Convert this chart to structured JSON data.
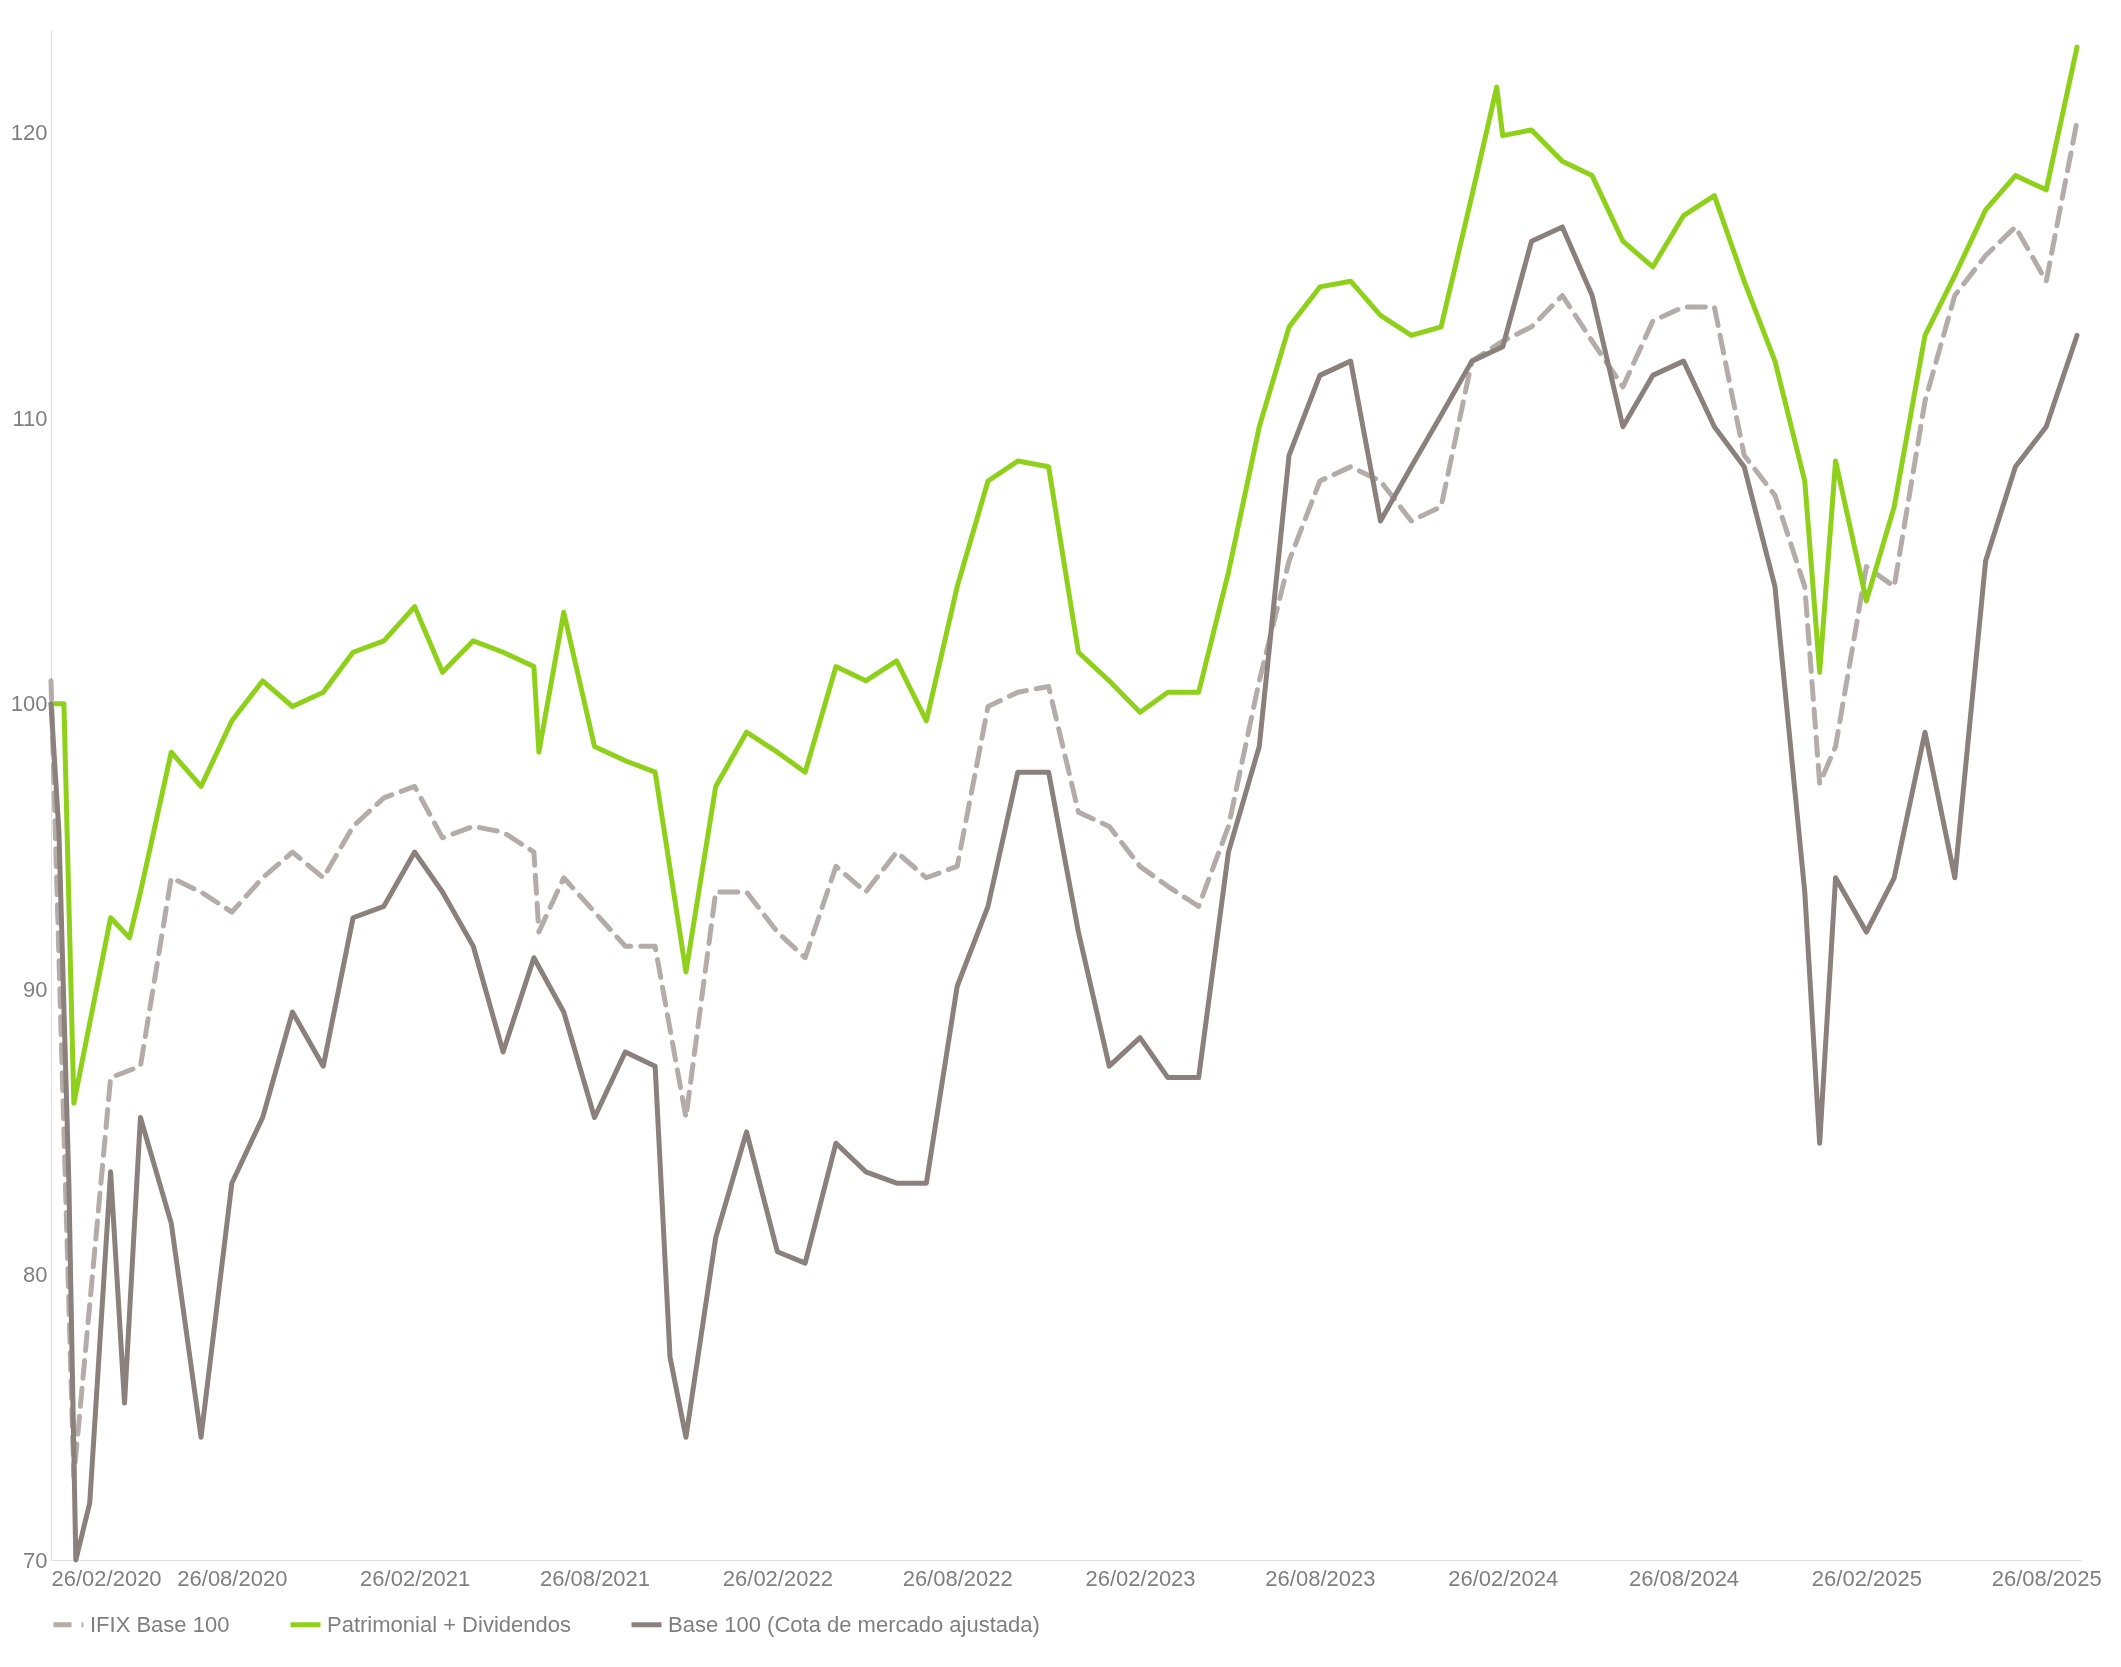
{
  "chart_data": {
    "type": "line",
    "xlim": [
      "2020-02-26",
      "2025-09-30"
    ],
    "ylim": [
      70,
      123.6
    ],
    "yticks": [
      70,
      80,
      90,
      100,
      110,
      120
    ],
    "xticks": [
      {
        "value": "2020-02-26",
        "label": "26/02/2020"
      },
      {
        "value": "2020-08-26",
        "label": "26/08/2020"
      },
      {
        "value": "2021-02-26",
        "label": "26/02/2021"
      },
      {
        "value": "2021-08-26",
        "label": "26/08/2021"
      },
      {
        "value": "2022-02-26",
        "label": "26/02/2022"
      },
      {
        "value": "2022-08-26",
        "label": "26/08/2022"
      },
      {
        "value": "2023-02-26",
        "label": "26/02/2023"
      },
      {
        "value": "2023-08-26",
        "label": "26/08/2023"
      },
      {
        "value": "2024-02-26",
        "label": "26/02/2024"
      },
      {
        "value": "2024-08-26",
        "label": "26/08/2024"
      },
      {
        "value": "2025-02-26",
        "label": "26/02/2025"
      },
      {
        "value": "2025-08-26",
        "label": "26/08/2025"
      }
    ],
    "grid": false,
    "legend": "bottom",
    "marker": "none",
    "series": [
      {
        "name": "IFIX Base 100",
        "color": "#b3aca8",
        "line_style": "dashed",
        "x": [
          "2020-02-26",
          "2020-03-20",
          "2020-04-26",
          "2020-05-26",
          "2020-06-26",
          "2020-07-26",
          "2020-08-26",
          "2020-09-26",
          "2020-10-26",
          "2020-11-26",
          "2020-12-26",
          "2021-01-26",
          "2021-02-26",
          "2021-03-26",
          "2021-04-26",
          "2021-05-26",
          "2021-06-26",
          "2021-07-01",
          "2021-07-26",
          "2021-08-26",
          "2021-09-26",
          "2021-10-26",
          "2021-11-26",
          "2021-12-26",
          "2022-01-26",
          "2022-02-26",
          "2022-03-26",
          "2022-04-26",
          "2022-05-26",
          "2022-06-26",
          "2022-07-26",
          "2022-08-26",
          "2022-09-26",
          "2022-10-26",
          "2022-11-26",
          "2022-12-26",
          "2023-01-26",
          "2023-02-26",
          "2023-03-26",
          "2023-04-26",
          "2023-05-26",
          "2023-06-26",
          "2023-07-26",
          "2023-08-26",
          "2023-09-26",
          "2023-10-26",
          "2023-11-26",
          "2023-12-26",
          "2024-01-26",
          "2024-02-26",
          "2024-03-26",
          "2024-04-26",
          "2024-05-26",
          "2024-06-26",
          "2024-07-26",
          "2024-08-26",
          "2024-09-26",
          "2024-10-26",
          "2024-11-26",
          "2024-12-26",
          "2025-01-10",
          "2025-01-26",
          "2025-02-26",
          "2025-03-26",
          "2025-04-26",
          "2025-05-26",
          "2025-06-26",
          "2025-07-26",
          "2025-08-26",
          "2025-09-26"
        ],
        "values": [
          100.8,
          72.9,
          86.9,
          87.3,
          93.9,
          93.4,
          92.7,
          93.9,
          94.8,
          93.9,
          95.7,
          96.7,
          97.1,
          95.3,
          95.7,
          95.5,
          94.8,
          92,
          93.9,
          92.7,
          91.5,
          91.5,
          85.5,
          93.4,
          93.4,
          92,
          91.1,
          94.3,
          93.4,
          94.8,
          93.9,
          94.3,
          99.9,
          100.4,
          100.6,
          96.2,
          95.7,
          94.3,
          93.6,
          92.9,
          95.7,
          100.8,
          105,
          107.8,
          108.3,
          107.8,
          106.4,
          106.9,
          112,
          112.7,
          113.2,
          114.3,
          112.7,
          111.1,
          113.4,
          113.9,
          113.9,
          108.7,
          107.3,
          104.1,
          97.2,
          98.5,
          104.8,
          104.1,
          110.6,
          114.3,
          115.7,
          116.7,
          114.8,
          120.4
        ]
      },
      {
        "name": "Patrimonial + Dividendos",
        "color": "#8fd11a",
        "line_style": "solid",
        "x": [
          "2020-02-26",
          "2020-03-10",
          "2020-03-20",
          "2020-04-26",
          "2020-05-15",
          "2020-05-26",
          "2020-06-26",
          "2020-07-26",
          "2020-08-26",
          "2020-09-26",
          "2020-10-26",
          "2020-11-26",
          "2020-12-26",
          "2021-01-26",
          "2021-02-26",
          "2021-03-26",
          "2021-04-26",
          "2021-05-26",
          "2021-06-26",
          "2021-07-01",
          "2021-07-26",
          "2021-08-26",
          "2021-09-26",
          "2021-10-26",
          "2021-11-26",
          "2021-12-26",
          "2022-01-26",
          "2022-02-26",
          "2022-03-26",
          "2022-04-26",
          "2022-05-26",
          "2022-06-26",
          "2022-07-26",
          "2022-08-26",
          "2022-09-26",
          "2022-10-26",
          "2022-11-26",
          "2022-12-26",
          "2023-01-26",
          "2023-02-26",
          "2023-03-26",
          "2023-04-26",
          "2023-05-26",
          "2023-06-26",
          "2023-07-26",
          "2023-08-26",
          "2023-09-26",
          "2023-10-26",
          "2023-11-26",
          "2023-12-26",
          "2024-01-26",
          "2024-02-20",
          "2024-02-26",
          "2024-03-26",
          "2024-04-26",
          "2024-05-26",
          "2024-06-26",
          "2024-07-26",
          "2024-08-26",
          "2024-09-26",
          "2024-10-26",
          "2024-11-26",
          "2024-12-26",
          "2025-01-10",
          "2025-01-26",
          "2025-02-26",
          "2025-03-26",
          "2025-04-26",
          "2025-05-26",
          "2025-06-26",
          "2025-07-26",
          "2025-08-26",
          "2025-09-26"
        ],
        "values": [
          100,
          100,
          86,
          92.5,
          91.8,
          93.4,
          98.3,
          97.1,
          99.4,
          100.8,
          99.9,
          100.4,
          101.8,
          102.2,
          103.4,
          101.1,
          102.2,
          101.8,
          101.3,
          98.3,
          103.2,
          98.5,
          98,
          97.6,
          90.6,
          97.1,
          99,
          98.3,
          97.6,
          101.3,
          100.8,
          101.5,
          99.4,
          104.1,
          107.8,
          108.5,
          108.3,
          101.8,
          100.8,
          99.7,
          100.4,
          100.4,
          104.6,
          109.7,
          113.2,
          114.6,
          114.8,
          113.6,
          112.9,
          113.2,
          117.8,
          121.6,
          119.9,
          120.1,
          119,
          118.5,
          116.2,
          115.3,
          117.1,
          117.8,
          114.8,
          112,
          107.8,
          101.1,
          108.5,
          103.6,
          106.9,
          112.9,
          115,
          117.3,
          118.5,
          118,
          123
        ]
      },
      {
        "name": "Base 100 (Cota de mercado ajustada)",
        "color": "#8a807c",
        "line_style": "solid",
        "x": [
          "2020-02-26",
          "2020-03-05",
          "2020-03-15",
          "2020-03-22",
          "2020-04-05",
          "2020-04-26",
          "2020-05-10",
          "2020-05-26",
          "2020-06-26",
          "2020-07-26",
          "2020-08-26",
          "2020-09-26",
          "2020-10-26",
          "2020-11-26",
          "2020-12-26",
          "2021-01-26",
          "2021-02-26",
          "2021-03-26",
          "2021-04-26",
          "2021-05-26",
          "2021-06-26",
          "2021-07-26",
          "2021-08-26",
          "2021-09-26",
          "2021-10-26",
          "2021-11-10",
          "2021-11-26",
          "2021-12-26",
          "2022-01-26",
          "2022-02-26",
          "2022-03-26",
          "2022-04-26",
          "2022-05-26",
          "2022-06-26",
          "2022-07-26",
          "2022-08-26",
          "2022-09-26",
          "2022-10-26",
          "2022-11-26",
          "2022-12-26",
          "2023-01-26",
          "2023-02-26",
          "2023-03-26",
          "2023-04-26",
          "2023-05-26",
          "2023-06-26",
          "2023-07-26",
          "2023-08-26",
          "2023-09-26",
          "2023-10-26",
          "2023-11-26",
          "2023-12-26",
          "2024-01-26",
          "2024-02-26",
          "2024-03-26",
          "2024-04-26",
          "2024-05-26",
          "2024-06-26",
          "2024-07-26",
          "2024-08-26",
          "2024-09-26",
          "2024-10-26",
          "2024-11-26",
          "2024-12-26",
          "2025-01-10",
          "2025-01-26",
          "2025-02-26",
          "2025-03-26",
          "2025-04-26",
          "2025-05-26",
          "2025-06-26",
          "2025-07-26",
          "2025-08-26",
          "2025-09-26"
        ],
        "values": [
          100,
          95.5,
          83.2,
          70,
          72,
          83.6,
          75.5,
          85.5,
          81.8,
          74.3,
          83.2,
          85.5,
          89.2,
          87.3,
          92.5,
          92.9,
          94.8,
          93.4,
          91.5,
          87.8,
          91.1,
          89.2,
          85.5,
          87.8,
          87.3,
          77.1,
          74.3,
          81.3,
          85,
          80.8,
          80.4,
          84.6,
          83.6,
          83.2,
          83.2,
          90.1,
          92.9,
          97.6,
          97.6,
          92,
          87.3,
          88.3,
          86.9,
          86.9,
          94.8,
          98.5,
          108.7,
          111.5,
          112,
          106.4,
          108.3,
          110.1,
          112,
          112.5,
          116.2,
          116.7,
          114.3,
          109.7,
          111.5,
          112,
          109.7,
          108.3,
          104.1,
          93.4,
          84.6,
          93.9,
          92,
          93.9,
          99,
          93.9,
          105,
          108.3,
          109.7,
          112.9
        ]
      }
    ]
  }
}
